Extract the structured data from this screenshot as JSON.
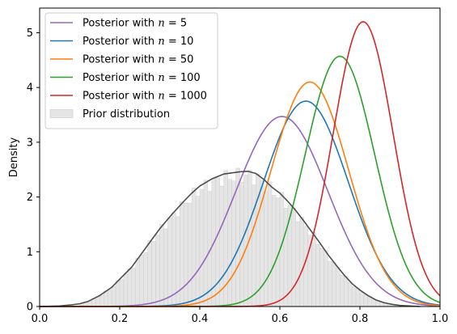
{
  "chart_data": {
    "type": "line",
    "title": "",
    "xlabel": "",
    "ylabel": "Density",
    "xlim": [
      0.0,
      1.0
    ],
    "ylim": [
      0,
      5.45
    ],
    "xticks": [
      "0.0",
      "0.2",
      "0.4",
      "0.6",
      "0.8",
      "1.0"
    ],
    "yticks": [
      "0",
      "1",
      "2",
      "3",
      "4",
      "5"
    ],
    "grid": false,
    "legend_position": "top-left",
    "series": [
      {
        "name": "Posterior with n = 5",
        "legend_prefix": "Posterior with ",
        "legend_var": "n",
        "legend_value": "= 5",
        "color": "#9467bd",
        "peak_x": 0.605,
        "peak_y": 3.47,
        "sigma": 0.115
      },
      {
        "name": "Posterior with n = 10",
        "legend_prefix": "Posterior with ",
        "legend_var": "n",
        "legend_value": "= 10",
        "color": "#1f77b4",
        "peak_x": 0.665,
        "peak_y": 3.75,
        "sigma": 0.106
      },
      {
        "name": "Posterior with n = 50",
        "legend_prefix": "Posterior with ",
        "legend_var": "n",
        "legend_value": "= 50",
        "color": "#ff7f0e",
        "peak_x": 0.675,
        "peak_y": 4.1,
        "sigma": 0.097
      },
      {
        "name": "Posterior with n = 100",
        "legend_prefix": "Posterior with ",
        "legend_var": "n",
        "legend_value": "= 100",
        "color": "#2ca02c",
        "peak_x": 0.75,
        "peak_y": 4.57,
        "sigma": 0.087
      },
      {
        "name": "Posterior with n = 1000",
        "legend_prefix": "Posterior with ",
        "legend_var": "n",
        "legend_value": "= 1000",
        "color": "#d62728",
        "peak_x": 0.808,
        "peak_y": 5.2,
        "sigma": 0.075
      }
    ],
    "prior": {
      "name": "Prior distribution",
      "kde_color": "#4d4d4d",
      "hist_fill": "#e5e5e5",
      "hist_edge": "#c8c8c8",
      "kde_points": [
        [
          0.0,
          0.0
        ],
        [
          0.05,
          0.01
        ],
        [
          0.08,
          0.03
        ],
        [
          0.1,
          0.05
        ],
        [
          0.12,
          0.09
        ],
        [
          0.15,
          0.2
        ],
        [
          0.18,
          0.35
        ],
        [
          0.2,
          0.5
        ],
        [
          0.23,
          0.72
        ],
        [
          0.25,
          0.92
        ],
        [
          0.28,
          1.22
        ],
        [
          0.3,
          1.42
        ],
        [
          0.33,
          1.68
        ],
        [
          0.36,
          1.92
        ],
        [
          0.38,
          2.07
        ],
        [
          0.4,
          2.2
        ],
        [
          0.43,
          2.33
        ],
        [
          0.46,
          2.42
        ],
        [
          0.48,
          2.44
        ],
        [
          0.5,
          2.46
        ],
        [
          0.52,
          2.47
        ],
        [
          0.54,
          2.43
        ],
        [
          0.56,
          2.32
        ],
        [
          0.58,
          2.18
        ],
        [
          0.6,
          2.07
        ],
        [
          0.62,
          1.92
        ],
        [
          0.64,
          1.75
        ],
        [
          0.66,
          1.56
        ],
        [
          0.68,
          1.36
        ],
        [
          0.7,
          1.16
        ],
        [
          0.72,
          0.95
        ],
        [
          0.74,
          0.76
        ],
        [
          0.76,
          0.58
        ],
        [
          0.78,
          0.42
        ],
        [
          0.8,
          0.3
        ],
        [
          0.82,
          0.2
        ],
        [
          0.84,
          0.12
        ],
        [
          0.86,
          0.07
        ],
        [
          0.88,
          0.04
        ],
        [
          0.9,
          0.02
        ],
        [
          0.95,
          0.0
        ]
      ],
      "hist_bins": {
        "start": 0.1,
        "end": 0.9,
        "width": 0.01
      }
    }
  }
}
